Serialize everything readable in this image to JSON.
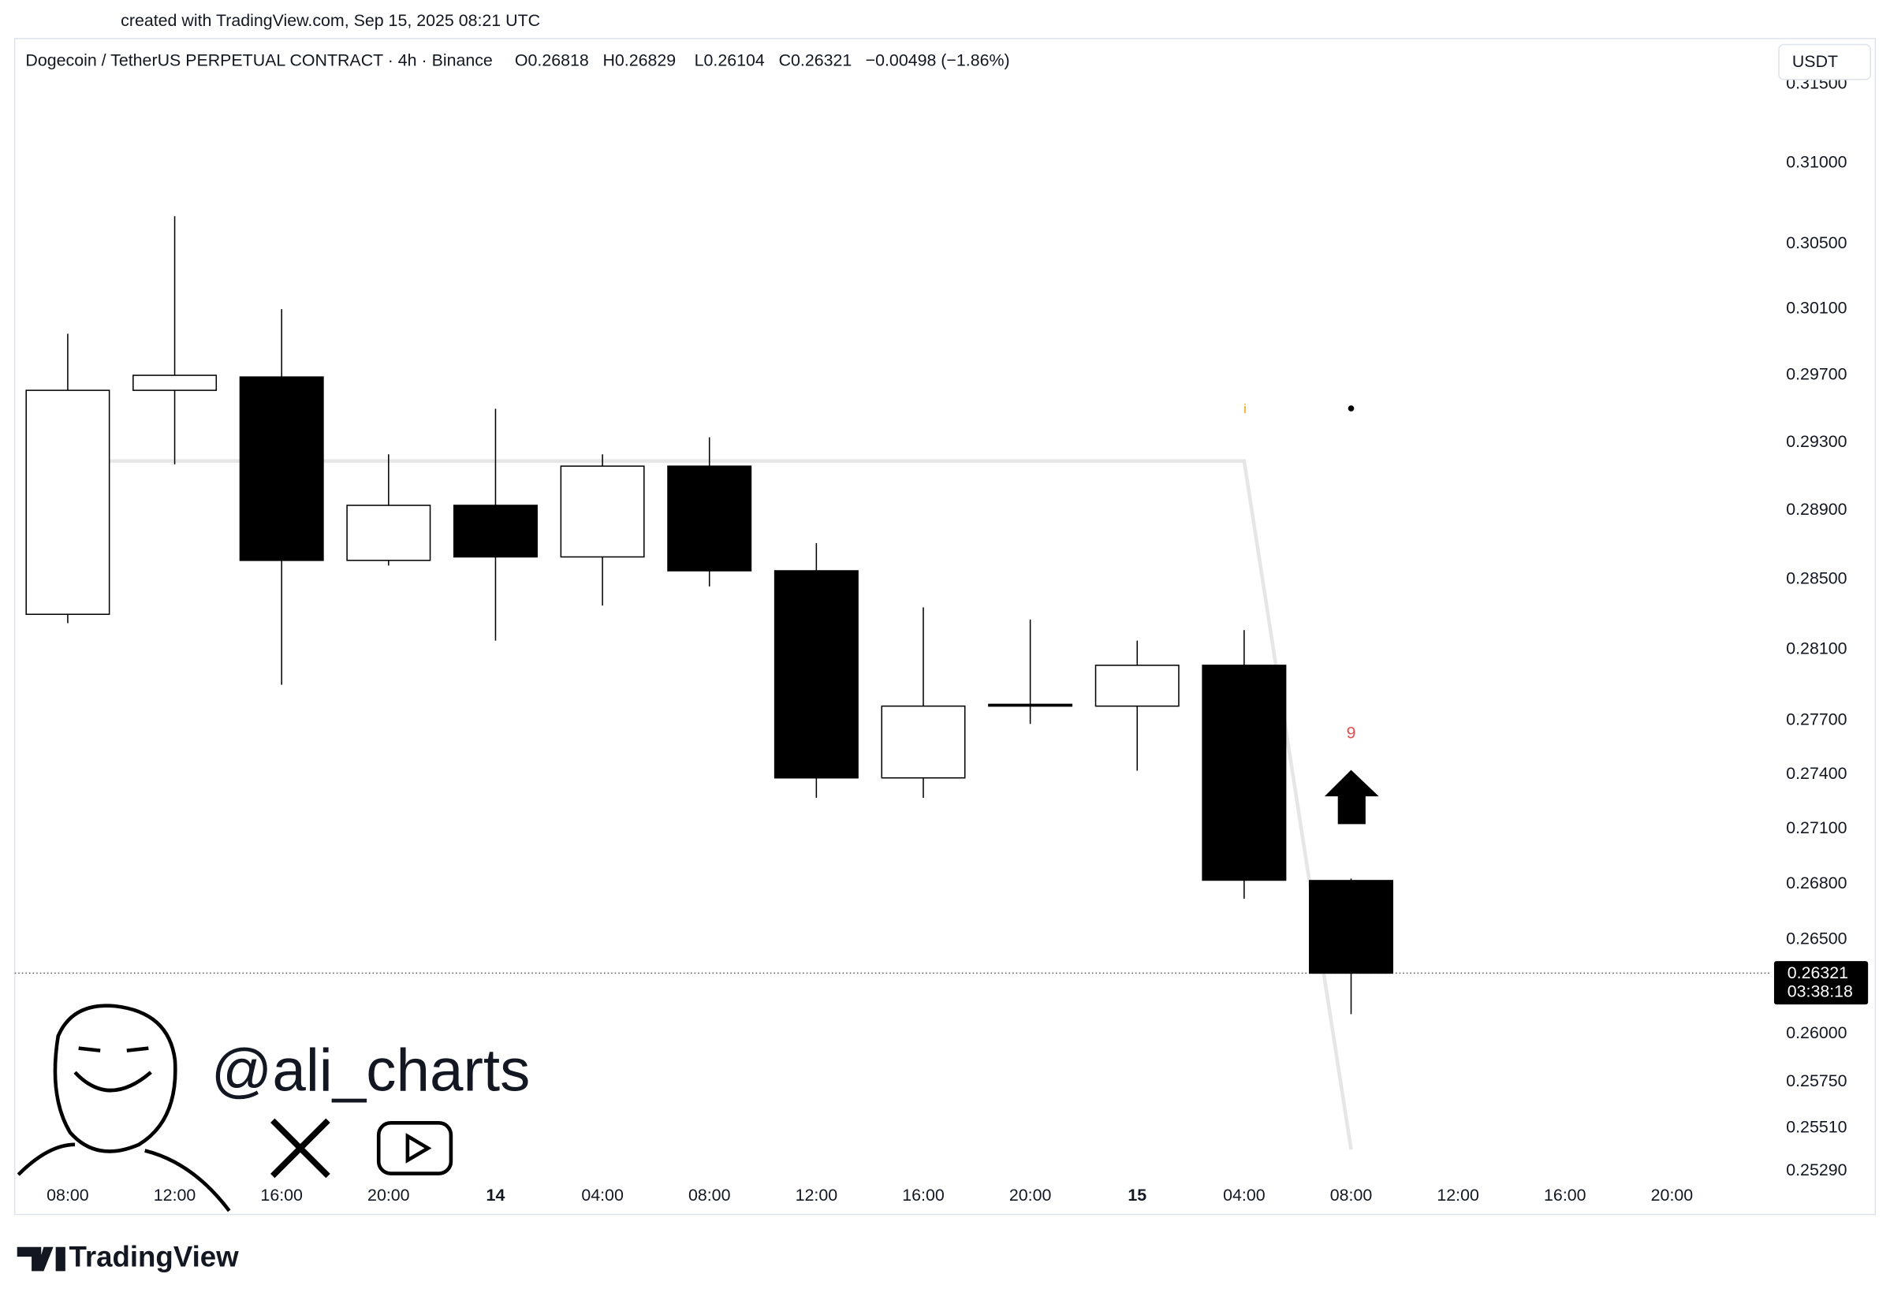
{
  "chart_data": {
    "type": "candlestick",
    "credit": "created with TradingView.com, Sep 15, 2025 08:21 UTC",
    "title": "Dogecoin / TetherUS PERPETUAL CONTRACT · 4h · Binance",
    "ohlc_labels": [
      "O0.26818",
      "H0.26829",
      "L0.26104",
      "C0.26321"
    ],
    "change": "−0.00498 (−1.86%)",
    "currency": "USDT",
    "categories": [
      "08:00",
      "12:00",
      "16:00",
      "20:00",
      "14",
      "04:00",
      "08:00",
      "12:00",
      "16:00",
      "20:00",
      "15",
      "04:00",
      "08:00",
      "12:00",
      "16:00",
      "20:00"
    ],
    "open": [
      0.283,
      0.2961,
      0.2969,
      0.2861,
      0.2893,
      0.2863,
      0.2916,
      0.2855,
      0.2738,
      0.2779,
      0.2778,
      0.2801,
      0.26818,
      null,
      null,
      null
    ],
    "high": [
      0.2995,
      0.3067,
      0.301,
      0.2923,
      0.295,
      0.2923,
      0.2933,
      0.2871,
      0.2834,
      0.2827,
      0.2815,
      0.2821,
      0.26829,
      null,
      null,
      null
    ],
    "low": [
      0.2825,
      0.2917,
      0.279,
      0.2858,
      0.2815,
      0.2835,
      0.2846,
      0.2727,
      0.2727,
      0.2768,
      0.2742,
      0.2672,
      0.26104,
      null,
      null,
      null
    ],
    "close": [
      0.2961,
      0.297,
      0.2861,
      0.2893,
      0.2863,
      0.2916,
      0.2855,
      0.2738,
      0.2778,
      0.2778,
      0.2801,
      0.2682,
      0.26321,
      null,
      null,
      null
    ],
    "up_color": "#ffffff",
    "down_color": "#000000",
    "border_color": "#000000",
    "series": [
      {
        "color": "#e6e6e6",
        "values": [
          0.2919,
          0.2919,
          0.2919,
          0.2919,
          0.2919,
          0.2919,
          0.2919,
          0.2919,
          0.2919,
          0.2919,
          0.2919,
          0.2919,
          0.254,
          null,
          null,
          null
        ]
      }
    ],
    "log_scale": true,
    "ylim": [
      0.2524,
      0.3176
    ],
    "yticks": [
      {
        "value": 0.315,
        "label": "0.31500"
      },
      {
        "value": 0.31,
        "label": "0.31000"
      },
      {
        "value": 0.305,
        "label": "0.30500"
      },
      {
        "value": 0.301,
        "label": "0.30100"
      },
      {
        "value": 0.297,
        "label": "0.29700"
      },
      {
        "value": 0.293,
        "label": "0.29300"
      },
      {
        "value": 0.289,
        "label": "0.28900"
      },
      {
        "value": 0.285,
        "label": "0.28500"
      },
      {
        "value": 0.281,
        "label": "0.28100"
      },
      {
        "value": 0.277,
        "label": "0.27700"
      },
      {
        "value": 0.274,
        "label": "0.27400"
      },
      {
        "value": 0.271,
        "label": "0.27100"
      },
      {
        "value": 0.268,
        "label": "0.26800"
      },
      {
        "value": 0.265,
        "label": "0.26500"
      },
      {
        "value": 0.26,
        "label": "0.26000"
      },
      {
        "value": 0.2575,
        "label": "0.25750"
      },
      {
        "value": 0.2551,
        "label": "0.25510"
      },
      {
        "value": 0.2529,
        "label": "0.25290"
      }
    ],
    "last_price": 0.26321,
    "countdown": "03:38:18",
    "annotation": "9",
    "watermark": "@ali_charts",
    "brand": "TradingView"
  }
}
